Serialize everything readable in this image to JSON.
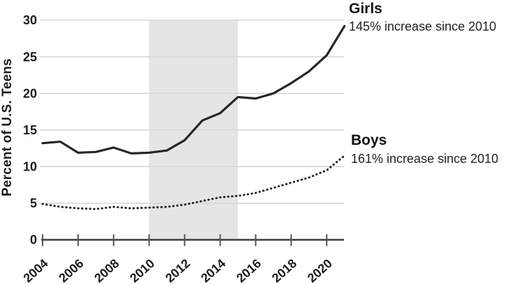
{
  "chart_data": {
    "type": "line",
    "title": "",
    "ylabel": "Percent of U.S. Teens",
    "xlabel": "",
    "ylim": [
      0,
      30
    ],
    "yticks": [
      0,
      5,
      10,
      15,
      20,
      25,
      30
    ],
    "xticks": [
      2004,
      2006,
      2008,
      2010,
      2012,
      2014,
      2016,
      2018,
      2020
    ],
    "x": [
      2004,
      2005,
      2006,
      2007,
      2008,
      2009,
      2010,
      2011,
      2012,
      2013,
      2014,
      2015,
      2016,
      2017,
      2018,
      2019,
      2020,
      2021
    ],
    "series": [
      {
        "name": "Girls",
        "annotation": "145% increase since 2010",
        "line_style": "solid",
        "values": [
          13.2,
          13.4,
          11.9,
          12.0,
          12.6,
          11.8,
          11.9,
          12.2,
          13.6,
          16.3,
          17.3,
          19.5,
          19.3,
          20.0,
          21.4,
          23.0,
          25.2,
          29.2
        ]
      },
      {
        "name": "Boys",
        "annotation": "161% increase since 2010",
        "line_style": "dotted",
        "values": [
          4.9,
          4.5,
          4.3,
          4.2,
          4.5,
          4.3,
          4.4,
          4.5,
          4.8,
          5.3,
          5.8,
          6.0,
          6.4,
          7.1,
          7.8,
          8.5,
          9.5,
          11.5
        ]
      }
    ],
    "shaded_region": {
      "from_x": 2010,
      "to_x": 2015
    },
    "grid": "horizontal",
    "legend_position": "right-annotations",
    "colors": {
      "line": "#262626",
      "grid": "#d7d7d7",
      "shade": "#e5e5e5",
      "axis": "#3c3c3c",
      "tick": "#555555",
      "text": "#1a1a1a"
    }
  }
}
